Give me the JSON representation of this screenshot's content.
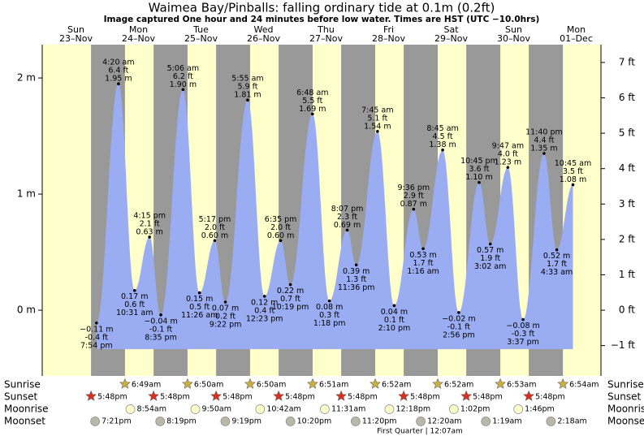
{
  "chart_data": {
    "type": "tide",
    "title": "Waimea Bay/Pinballs: falling  ordinary tide at 0.1m (0.2ft)",
    "subtitle": "Image captured One hour and 24 minutes before low water. Times are HST (UTC −10.0hrs)",
    "days": [
      {
        "weekday": "Sun",
        "date": "23–Nov"
      },
      {
        "weekday": "Mon",
        "date": "24–Nov"
      },
      {
        "weekday": "Tue",
        "date": "25–Nov"
      },
      {
        "weekday": "Wed",
        "date": "26–Nov"
      },
      {
        "weekday": "Thu",
        "date": "27–Nov"
      },
      {
        "weekday": "Fri",
        "date": "28–Nov"
      },
      {
        "weekday": "Sat",
        "date": "29–Nov"
      },
      {
        "weekday": "Sun",
        "date": "30–Nov"
      },
      {
        "weekday": "Mon",
        "date": "01–Dec"
      }
    ],
    "ylim": [
      -0.566,
      2.287
    ],
    "yticks": [
      {
        "value": 2,
        "label": "2 m"
      },
      {
        "value": 1,
        "label": "1 m"
      },
      {
        "value": 0,
        "label": "0 m"
      }
    ],
    "y2lim": [
      -1.857,
      7.503
    ],
    "y2ticks": [
      {
        "value": 7,
        "label": "7 ft"
      },
      {
        "value": 6,
        "label": "6 ft"
      },
      {
        "value": 5,
        "label": "5 ft"
      },
      {
        "value": 4,
        "label": "4 ft"
      },
      {
        "value": 3,
        "label": "3 ft"
      },
      {
        "value": 2,
        "label": "2 ft"
      },
      {
        "value": 1,
        "label": "1 ft"
      },
      {
        "value": 0,
        "label": "0 ft"
      },
      {
        "value": -1,
        "label": "−1 ft"
      }
    ],
    "colors": {
      "day": "#ffffcc",
      "night": "#999999",
      "water": "#9aacf2",
      "header": "#e00000"
    },
    "tides": [
      {
        "date": "23–Nov",
        "time": "7:54 pm",
        "value": -0.11,
        "value_label": "−0.11 m",
        "ft_label": "-0.4 ft"
      },
      {
        "date": "24–Nov",
        "time": "4:20 am",
        "value": 1.95,
        "value_label": "1.95 m",
        "ft_label": "6.4 ft"
      },
      {
        "date": "24–Nov",
        "time": "10:31 am",
        "value": 0.17,
        "value_label": "0.17 m",
        "ft_label": "0.6 ft"
      },
      {
        "date": "24–Nov",
        "time": "4:15 pm",
        "value": 0.63,
        "value_label": "0.63 m",
        "ft_label": "2.1 ft"
      },
      {
        "date": "24–Nov",
        "time": "8:35 pm",
        "value": -0.04,
        "value_label": "−0.04 m",
        "ft_label": "-0.1 ft"
      },
      {
        "date": "25–Nov",
        "time": "5:06 am",
        "value": 1.9,
        "value_label": "1.90 m",
        "ft_label": "6.2 ft"
      },
      {
        "date": "25–Nov",
        "time": "11:26 am",
        "value": 0.15,
        "value_label": "0.15 m",
        "ft_label": "0.5 ft"
      },
      {
        "date": "25–Nov",
        "time": "5:17 pm",
        "value": 0.6,
        "value_label": "0.60 m",
        "ft_label": "2.0 ft"
      },
      {
        "date": "25–Nov",
        "time": "9:22 pm",
        "value": 0.07,
        "value_label": "0.07 m",
        "ft_label": "0.2 ft"
      },
      {
        "date": "26–Nov",
        "time": "5:55 am",
        "value": 1.81,
        "value_label": "1.81 m",
        "ft_label": "5.9 ft"
      },
      {
        "date": "26–Nov",
        "time": "12:23 pm",
        "value": 0.12,
        "value_label": "0.12 m",
        "ft_label": "0.4 ft"
      },
      {
        "date": "26–Nov",
        "time": "6:35 pm",
        "value": 0.6,
        "value_label": "0.60 m",
        "ft_label": "2.0 ft"
      },
      {
        "date": "26–Nov",
        "time": "10:19 pm",
        "value": 0.22,
        "value_label": "0.22 m",
        "ft_label": "0.7 ft"
      },
      {
        "date": "27–Nov",
        "time": "6:48 am",
        "value": 1.69,
        "value_label": "1.69 m",
        "ft_label": "5.5 ft"
      },
      {
        "date": "27–Nov",
        "time": "1:18 pm",
        "value": 0.08,
        "value_label": "0.08 m",
        "ft_label": "0.3 ft"
      },
      {
        "date": "27–Nov",
        "time": "8:07 pm",
        "value": 0.69,
        "value_label": "0.69 m",
        "ft_label": "2.3 ft"
      },
      {
        "date": "27–Nov",
        "time": "11:36 pm",
        "value": 0.39,
        "value_label": "0.39 m",
        "ft_label": "1.3 ft"
      },
      {
        "date": "28–Nov",
        "time": "7:45 am",
        "value": 1.54,
        "value_label": "1.54 m",
        "ft_label": "5.1 ft"
      },
      {
        "date": "28–Nov",
        "time": "2:10 pm",
        "value": 0.04,
        "value_label": "0.04 m",
        "ft_label": "0.1 ft"
      },
      {
        "date": "28–Nov",
        "time": "9:36 pm",
        "value": 0.87,
        "value_label": "0.87 m",
        "ft_label": "2.9 ft"
      },
      {
        "date": "29–Nov",
        "time": "1:16 am",
        "value": 0.53,
        "value_label": "0.53 m",
        "ft_label": "1.7 ft"
      },
      {
        "date": "29–Nov",
        "time": "8:45 am",
        "value": 1.38,
        "value_label": "1.38 m",
        "ft_label": "4.5 ft"
      },
      {
        "date": "29–Nov",
        "time": "2:56 pm",
        "value": -0.02,
        "value_label": "−0.02 m",
        "ft_label": "-0.1 ft"
      },
      {
        "date": "29–Nov",
        "time": "10:45 pm",
        "value": 1.1,
        "value_label": "1.10 m",
        "ft_label": "3.6 ft"
      },
      {
        "date": "30–Nov",
        "time": "3:02 am",
        "value": 0.57,
        "value_label": "0.57 m",
        "ft_label": "1.9 ft"
      },
      {
        "date": "30–Nov",
        "time": "9:47 am",
        "value": 1.23,
        "value_label": "1.23 m",
        "ft_label": "4.0 ft"
      },
      {
        "date": "30–Nov",
        "time": "3:37 pm",
        "value": -0.08,
        "value_label": "−0.08 m",
        "ft_label": "-0.3 ft"
      },
      {
        "date": "30–Nov",
        "time": "11:40 pm",
        "value": 1.35,
        "value_label": "1.35 m",
        "ft_label": "4.4 ft"
      },
      {
        "date": "01–Dec",
        "time": "4:33 am",
        "value": 0.52,
        "value_label": "0.52 m",
        "ft_label": "1.7 ft"
      },
      {
        "date": "01–Dec",
        "time": "10:45 am",
        "value": 1.08,
        "value_label": "1.08 m",
        "ft_label": "3.5 ft"
      }
    ],
    "row_labels": {
      "sunrise": "Sunrise",
      "sunset": "Sunset",
      "moonrise": "Moonrise",
      "moonset": "Moonset"
    },
    "sunrise": [
      {
        "date": "24–Nov",
        "time": "6:49am"
      },
      {
        "date": "25–Nov",
        "time": "6:50am"
      },
      {
        "date": "26–Nov",
        "time": "6:50am"
      },
      {
        "date": "27–Nov",
        "time": "6:51am"
      },
      {
        "date": "28–Nov",
        "time": "6:52am"
      },
      {
        "date": "29–Nov",
        "time": "6:52am"
      },
      {
        "date": "30–Nov",
        "time": "6:53am"
      },
      {
        "date": "01–Dec",
        "time": "6:54am"
      }
    ],
    "sunset": [
      {
        "date": "23–Nov",
        "time": "5:48pm"
      },
      {
        "date": "24–Nov",
        "time": "5:48pm"
      },
      {
        "date": "25–Nov",
        "time": "5:48pm"
      },
      {
        "date": "26–Nov",
        "time": "5:48pm"
      },
      {
        "date": "27–Nov",
        "time": "5:48pm"
      },
      {
        "date": "28–Nov",
        "time": "5:48pm"
      },
      {
        "date": "29–Nov",
        "time": "5:48pm"
      },
      {
        "date": "30–Nov",
        "time": "5:48pm"
      }
    ],
    "moonrise": [
      {
        "date": "24–Nov",
        "time": "8:54am"
      },
      {
        "date": "25–Nov",
        "time": "9:50am"
      },
      {
        "date": "26–Nov",
        "time": "10:42am"
      },
      {
        "date": "27–Nov",
        "time": "11:31am"
      },
      {
        "date": "28–Nov",
        "time": "12:18pm"
      },
      {
        "date": "29–Nov",
        "time": "1:02pm"
      },
      {
        "date": "30–Nov",
        "time": "1:46pm"
      }
    ],
    "moonset": [
      {
        "date": "23–Nov",
        "time": "7:21pm"
      },
      {
        "date": "24–Nov",
        "time": "8:19pm"
      },
      {
        "date": "25–Nov",
        "time": "9:19pm"
      },
      {
        "date": "26–Nov",
        "time": "10:20pm"
      },
      {
        "date": "27–Nov",
        "time": "11:20pm"
      },
      {
        "date": "29–Nov",
        "time": "12:20am"
      },
      {
        "date": "30–Nov",
        "time": "1:19am"
      },
      {
        "date": "01–Dec",
        "time": "2:18am"
      }
    ],
    "moon_phase": {
      "date": "29–Nov",
      "label": "First Quarter | 12:07am"
    }
  }
}
